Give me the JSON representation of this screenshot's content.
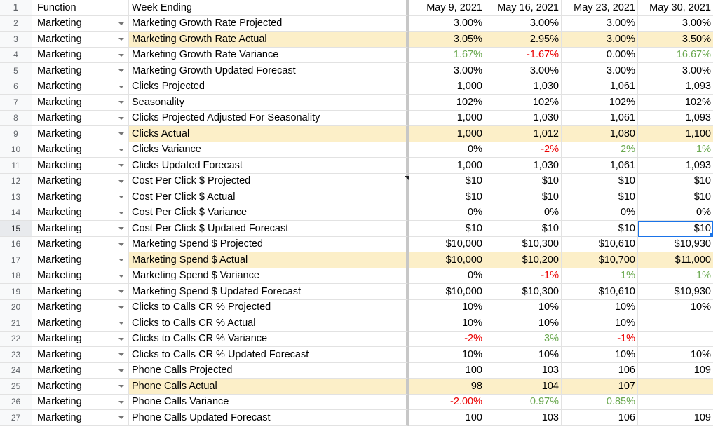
{
  "header": {
    "row_number": "1",
    "function_label": "Function",
    "week_label": "Week Ending",
    "dates": [
      "May 9, 2021",
      "May 16, 2021",
      "May 23, 2021",
      "May 30, 2021"
    ]
  },
  "colors": {
    "highlight_row": "#fcefc8",
    "positive_text": "#6aa84f",
    "negative_text": "#ea0000",
    "selection": "#1a73e8"
  },
  "rows": [
    {
      "n": "2",
      "fn": "Marketing",
      "label": "Marketing Growth Rate Projected",
      "v": [
        "3.00%",
        "3.00%",
        "3.00%",
        "3.00%"
      ]
    },
    {
      "n": "3",
      "fn": "Marketing",
      "label": "Marketing Growth Rate Actual",
      "hl": true,
      "v": [
        "3.05%",
        "2.95%",
        "3.00%",
        "3.50%"
      ]
    },
    {
      "n": "4",
      "fn": "Marketing",
      "label": "Marketing Growth Rate Variance",
      "v": [
        "1.67%",
        "-1.67%",
        "0.00%",
        "16.67%"
      ],
      "t": [
        "pos",
        "neg",
        "",
        "pos"
      ]
    },
    {
      "n": "5",
      "fn": "Marketing",
      "label": "Marketing Growth Updated Forecast",
      "v": [
        "3.00%",
        "3.00%",
        "3.00%",
        "3.00%"
      ]
    },
    {
      "n": "6",
      "fn": "Marketing",
      "label": "Clicks Projected",
      "v": [
        "1,000",
        "1,030",
        "1,061",
        "1,093"
      ]
    },
    {
      "n": "7",
      "fn": "Marketing",
      "label": "Seasonality",
      "v": [
        "102%",
        "102%",
        "102%",
        "102%"
      ]
    },
    {
      "n": "8",
      "fn": "Marketing",
      "label": "Clicks Projected Adjusted For Seasonality",
      "v": [
        "1,000",
        "1,030",
        "1,061",
        "1,093"
      ]
    },
    {
      "n": "9",
      "fn": "Marketing",
      "label": "Clicks Actual",
      "hl": true,
      "v": [
        "1,000",
        "1,012",
        "1,080",
        "1,100"
      ]
    },
    {
      "n": "10",
      "fn": "Marketing",
      "label": "Clicks Variance",
      "v": [
        "0%",
        "-2%",
        "2%",
        "1%"
      ],
      "t": [
        "",
        "neg",
        "pos",
        "pos"
      ]
    },
    {
      "n": "11",
      "fn": "Marketing",
      "label": "Clicks Updated Forecast",
      "v": [
        "1,000",
        "1,030",
        "1,061",
        "1,093"
      ]
    },
    {
      "n": "12",
      "fn": "Marketing",
      "label": "Cost Per Click $ Projected",
      "v": [
        "$10",
        "$10",
        "$10",
        "$10"
      ]
    },
    {
      "n": "13",
      "fn": "Marketing",
      "label": "Cost Per Click $ Actual",
      "v": [
        "$10",
        "$10",
        "$10",
        "$10"
      ]
    },
    {
      "n": "14",
      "fn": "Marketing",
      "label": "Cost Per Click $ Variance",
      "v": [
        "0%",
        "0%",
        "0%",
        "0%"
      ]
    },
    {
      "n": "15",
      "fn": "Marketing",
      "label": "Cost Per Click $ Updated Forecast",
      "v": [
        "$10",
        "$10",
        "$10",
        "$10"
      ],
      "sel": true
    },
    {
      "n": "16",
      "fn": "Marketing",
      "label": "Marketing Spend $ Projected",
      "v": [
        "$10,000",
        "$10,300",
        "$10,610",
        "$10,930"
      ]
    },
    {
      "n": "17",
      "fn": "Marketing",
      "label": "Marketing Spend $ Actual",
      "hl": true,
      "v": [
        "$10,000",
        "$10,200",
        "$10,700",
        "$11,000"
      ]
    },
    {
      "n": "18",
      "fn": "Marketing",
      "label": "Marketing Spend $ Variance",
      "v": [
        "0%",
        "-1%",
        "1%",
        "1%"
      ],
      "t": [
        "",
        "neg",
        "pos",
        "pos"
      ]
    },
    {
      "n": "19",
      "fn": "Marketing",
      "label": "Marketing Spend $ Updated Forecast",
      "v": [
        "$10,000",
        "$10,300",
        "$10,610",
        "$10,930"
      ]
    },
    {
      "n": "20",
      "fn": "Marketing",
      "label": "Clicks to Calls CR % Projected",
      "v": [
        "10%",
        "10%",
        "10%",
        "10%"
      ]
    },
    {
      "n": "21",
      "fn": "Marketing",
      "label": "Clicks to Calls CR % Actual",
      "v": [
        "10%",
        "10%",
        "10%",
        ""
      ]
    },
    {
      "n": "22",
      "fn": "Marketing",
      "label": "Clicks to Calls CR % Variance",
      "v": [
        "-2%",
        "3%",
        "-1%",
        ""
      ],
      "t": [
        "neg",
        "pos",
        "neg",
        ""
      ]
    },
    {
      "n": "23",
      "fn": "Marketing",
      "label": "Clicks to Calls CR % Updated Forecast",
      "v": [
        "10%",
        "10%",
        "10%",
        "10%"
      ]
    },
    {
      "n": "24",
      "fn": "Marketing",
      "label": "Phone Calls Projected",
      "v": [
        "100",
        "103",
        "106",
        "109"
      ]
    },
    {
      "n": "25",
      "fn": "Marketing",
      "label": "Phone Calls Actual",
      "hl": true,
      "v": [
        "98",
        "104",
        "107",
        ""
      ]
    },
    {
      "n": "26",
      "fn": "Marketing",
      "label": "Phone Calls Variance",
      "v": [
        "-2.00%",
        "0.97%",
        "0.85%",
        ""
      ],
      "t": [
        "neg",
        "pos",
        "pos",
        ""
      ]
    },
    {
      "n": "27",
      "fn": "Marketing",
      "label": "Phone Calls Updated Forecast",
      "v": [
        "100",
        "103",
        "106",
        "109"
      ]
    }
  ]
}
